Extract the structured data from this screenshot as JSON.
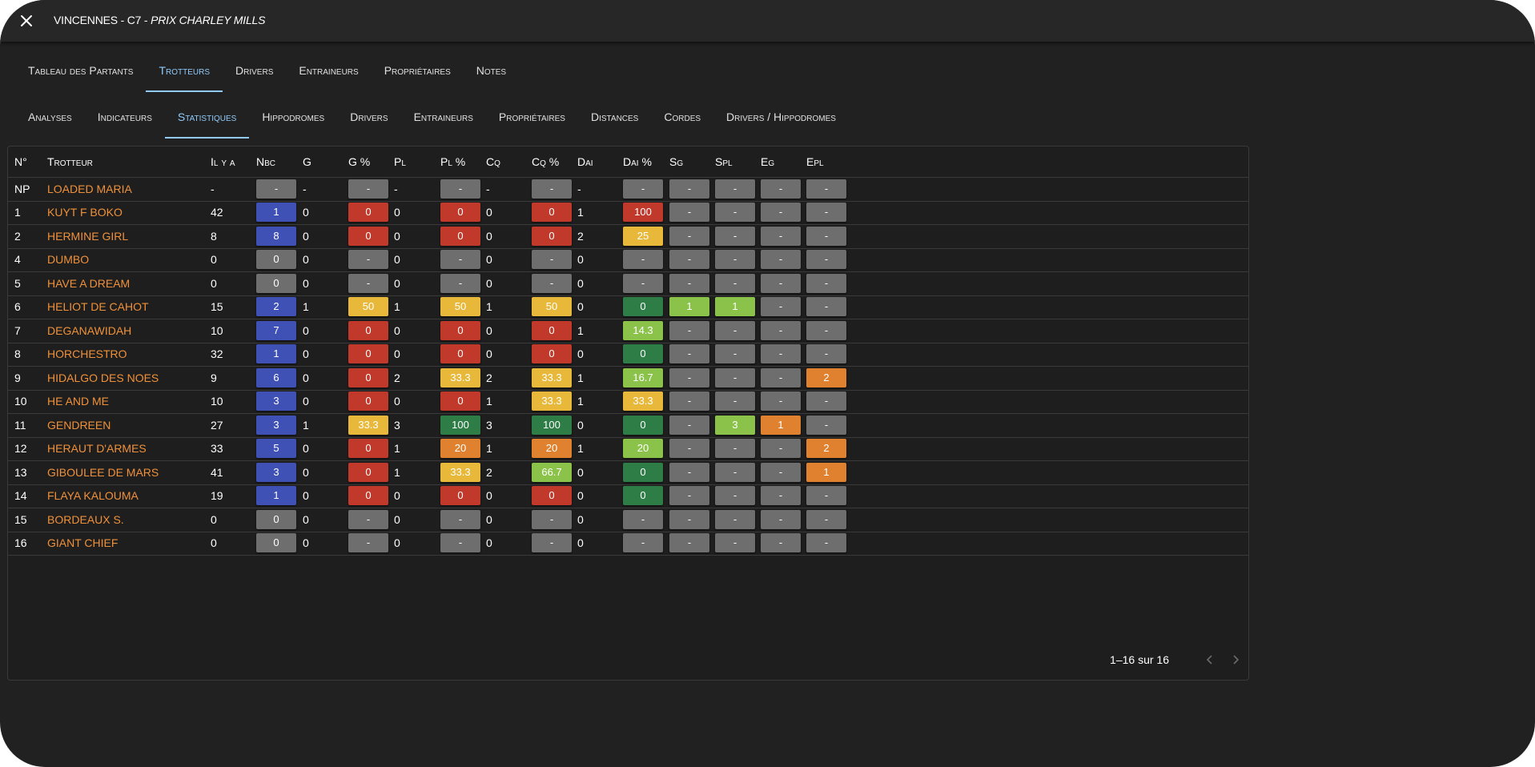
{
  "title": {
    "race": "VINCENNES - C7 -",
    "prize": "PRIX CHARLEY MILLS"
  },
  "tabs_primary": [
    {
      "label": "Tableau des Partants",
      "active": false
    },
    {
      "label": "Trotteurs",
      "active": true
    },
    {
      "label": "Drivers",
      "active": false
    },
    {
      "label": "Entraineurs",
      "active": false
    },
    {
      "label": "Propriétaires",
      "active": false
    },
    {
      "label": "Notes",
      "active": false
    }
  ],
  "tabs_secondary": [
    {
      "label": "Analyses",
      "active": false
    },
    {
      "label": "Indicateurs",
      "active": false
    },
    {
      "label": "Statistiques",
      "active": true
    },
    {
      "label": "Hippodromes",
      "active": false
    },
    {
      "label": "Drivers",
      "active": false
    },
    {
      "label": "Entraineurs",
      "active": false
    },
    {
      "label": "Propriétaires",
      "active": false
    },
    {
      "label": "Distances",
      "active": false
    },
    {
      "label": "Cordes",
      "active": false
    },
    {
      "label": "Drivers / Hippodromes",
      "active": false
    }
  ],
  "columns": [
    "N°",
    "Trotteur",
    "Il y a",
    "Nbc",
    "G",
    "G %",
    "Pl",
    "Pl %",
    "Cq",
    "Cq %",
    "Dai",
    "Dai %",
    "Sg",
    "Spl",
    "Eg",
    "Epl"
  ],
  "colors": {
    "blue": "#3f51b5",
    "grey": "#6e6e6e",
    "red": "#c0392b",
    "yellow": "#e8b83a",
    "orange": "#df812f",
    "dgreen": "#2e7d46",
    "lgreen": "#8bc34a",
    "accent": "#90caf9",
    "name": "#f0913a"
  },
  "rows": [
    [
      "NP",
      "LOADED MARIA",
      "-",
      [
        "-",
        "grey"
      ],
      "-",
      [
        "-",
        "grey"
      ],
      "-",
      [
        "-",
        "grey"
      ],
      "-",
      [
        "-",
        "grey"
      ],
      "-",
      [
        "-",
        "grey"
      ],
      [
        "-",
        "grey"
      ],
      [
        "-",
        "grey"
      ],
      [
        "-",
        "grey"
      ],
      [
        "-",
        "grey"
      ]
    ],
    [
      "1",
      "KUYT F BOKO",
      "42",
      [
        "1",
        "blue"
      ],
      "0",
      [
        "0",
        "red"
      ],
      "0",
      [
        "0",
        "red"
      ],
      "0",
      [
        "0",
        "red"
      ],
      "1",
      [
        "100",
        "red"
      ],
      [
        "-",
        "grey"
      ],
      [
        "-",
        "grey"
      ],
      [
        "-",
        "grey"
      ],
      [
        "-",
        "grey"
      ]
    ],
    [
      "2",
      "HERMINE GIRL",
      "8",
      [
        "8",
        "blue"
      ],
      "0",
      [
        "0",
        "red"
      ],
      "0",
      [
        "0",
        "red"
      ],
      "0",
      [
        "0",
        "red"
      ],
      "2",
      [
        "25",
        "yellow"
      ],
      [
        "-",
        "grey"
      ],
      [
        "-",
        "grey"
      ],
      [
        "-",
        "grey"
      ],
      [
        "-",
        "grey"
      ]
    ],
    [
      "4",
      "DUMBO",
      "0",
      [
        "0",
        "grey"
      ],
      "0",
      [
        "-",
        "grey"
      ],
      "0",
      [
        "-",
        "grey"
      ],
      "0",
      [
        "-",
        "grey"
      ],
      "0",
      [
        "-",
        "grey"
      ],
      [
        "-",
        "grey"
      ],
      [
        "-",
        "grey"
      ],
      [
        "-",
        "grey"
      ],
      [
        "-",
        "grey"
      ]
    ],
    [
      "5",
      "HAVE A DREAM",
      "0",
      [
        "0",
        "grey"
      ],
      "0",
      [
        "-",
        "grey"
      ],
      "0",
      [
        "-",
        "grey"
      ],
      "0",
      [
        "-",
        "grey"
      ],
      "0",
      [
        "-",
        "grey"
      ],
      [
        "-",
        "grey"
      ],
      [
        "-",
        "grey"
      ],
      [
        "-",
        "grey"
      ],
      [
        "-",
        "grey"
      ]
    ],
    [
      "6",
      "HELIOT DE CAHOT",
      "15",
      [
        "2",
        "blue"
      ],
      "1",
      [
        "50",
        "yellow"
      ],
      "1",
      [
        "50",
        "yellow"
      ],
      "1",
      [
        "50",
        "yellow"
      ],
      "0",
      [
        "0",
        "dgreen"
      ],
      [
        "1",
        "lgreen"
      ],
      [
        "1",
        "lgreen"
      ],
      [
        "-",
        "grey"
      ],
      [
        "-",
        "grey"
      ]
    ],
    [
      "7",
      "DEGANAWIDAH",
      "10",
      [
        "7",
        "blue"
      ],
      "0",
      [
        "0",
        "red"
      ],
      "0",
      [
        "0",
        "red"
      ],
      "0",
      [
        "0",
        "red"
      ],
      "1",
      [
        "14.3",
        "lgreen"
      ],
      [
        "-",
        "grey"
      ],
      [
        "-",
        "grey"
      ],
      [
        "-",
        "grey"
      ],
      [
        "-",
        "grey"
      ]
    ],
    [
      "8",
      "HORCHESTRO",
      "32",
      [
        "1",
        "blue"
      ],
      "0",
      [
        "0",
        "red"
      ],
      "0",
      [
        "0",
        "red"
      ],
      "0",
      [
        "0",
        "red"
      ],
      "0",
      [
        "0",
        "dgreen"
      ],
      [
        "-",
        "grey"
      ],
      [
        "-",
        "grey"
      ],
      [
        "-",
        "grey"
      ],
      [
        "-",
        "grey"
      ]
    ],
    [
      "9",
      "HIDALGO DES NOES",
      "9",
      [
        "6",
        "blue"
      ],
      "0",
      [
        "0",
        "red"
      ],
      "2",
      [
        "33.3",
        "yellow"
      ],
      "2",
      [
        "33.3",
        "yellow"
      ],
      "1",
      [
        "16.7",
        "lgreen"
      ],
      [
        "-",
        "grey"
      ],
      [
        "-",
        "grey"
      ],
      [
        "-",
        "grey"
      ],
      [
        "2",
        "orange"
      ]
    ],
    [
      "10",
      "HE AND ME",
      "10",
      [
        "3",
        "blue"
      ],
      "0",
      [
        "0",
        "red"
      ],
      "0",
      [
        "0",
        "red"
      ],
      "1",
      [
        "33.3",
        "yellow"
      ],
      "1",
      [
        "33.3",
        "yellow"
      ],
      [
        "-",
        "grey"
      ],
      [
        "-",
        "grey"
      ],
      [
        "-",
        "grey"
      ],
      [
        "-",
        "grey"
      ]
    ],
    [
      "11",
      "GENDREEN",
      "27",
      [
        "3",
        "blue"
      ],
      "1",
      [
        "33.3",
        "yellow"
      ],
      "3",
      [
        "100",
        "dgreen"
      ],
      "3",
      [
        "100",
        "dgreen"
      ],
      "0",
      [
        "0",
        "dgreen"
      ],
      [
        "-",
        "grey"
      ],
      [
        "3",
        "lgreen"
      ],
      [
        "1",
        "orange"
      ],
      [
        "-",
        "grey"
      ]
    ],
    [
      "12",
      "HERAUT D'ARMES",
      "33",
      [
        "5",
        "blue"
      ],
      "0",
      [
        "0",
        "red"
      ],
      "1",
      [
        "20",
        "orange"
      ],
      "1",
      [
        "20",
        "orange"
      ],
      "1",
      [
        "20",
        "lgreen"
      ],
      [
        "-",
        "grey"
      ],
      [
        "-",
        "grey"
      ],
      [
        "-",
        "grey"
      ],
      [
        "2",
        "orange"
      ]
    ],
    [
      "13",
      "GIBOULEE DE MARS",
      "41",
      [
        "3",
        "blue"
      ],
      "0",
      [
        "0",
        "red"
      ],
      "1",
      [
        "33.3",
        "yellow"
      ],
      "2",
      [
        "66.7",
        "lgreen"
      ],
      "0",
      [
        "0",
        "dgreen"
      ],
      [
        "-",
        "grey"
      ],
      [
        "-",
        "grey"
      ],
      [
        "-",
        "grey"
      ],
      [
        "1",
        "orange"
      ]
    ],
    [
      "14",
      "FLAYA KALOUMA",
      "19",
      [
        "1",
        "blue"
      ],
      "0",
      [
        "0",
        "red"
      ],
      "0",
      [
        "0",
        "red"
      ],
      "0",
      [
        "0",
        "red"
      ],
      "0",
      [
        "0",
        "dgreen"
      ],
      [
        "-",
        "grey"
      ],
      [
        "-",
        "grey"
      ],
      [
        "-",
        "grey"
      ],
      [
        "-",
        "grey"
      ]
    ],
    [
      "15",
      "BORDEAUX S.",
      "0",
      [
        "0",
        "grey"
      ],
      "0",
      [
        "-",
        "grey"
      ],
      "0",
      [
        "-",
        "grey"
      ],
      "0",
      [
        "-",
        "grey"
      ],
      "0",
      [
        "-",
        "grey"
      ],
      [
        "-",
        "grey"
      ],
      [
        "-",
        "grey"
      ],
      [
        "-",
        "grey"
      ],
      [
        "-",
        "grey"
      ]
    ],
    [
      "16",
      "GIANT CHIEF",
      "0",
      [
        "0",
        "grey"
      ],
      "0",
      [
        "-",
        "grey"
      ],
      "0",
      [
        "-",
        "grey"
      ],
      "0",
      [
        "-",
        "grey"
      ],
      "0",
      [
        "-",
        "grey"
      ],
      [
        "-",
        "grey"
      ],
      [
        "-",
        "grey"
      ],
      [
        "-",
        "grey"
      ],
      [
        "-",
        "grey"
      ]
    ]
  ],
  "pagination": {
    "info": "1–16 sur 16",
    "prev_icon": "chevron-left-icon",
    "next_icon": "chevron-right-icon"
  },
  "close_icon": "close-icon"
}
